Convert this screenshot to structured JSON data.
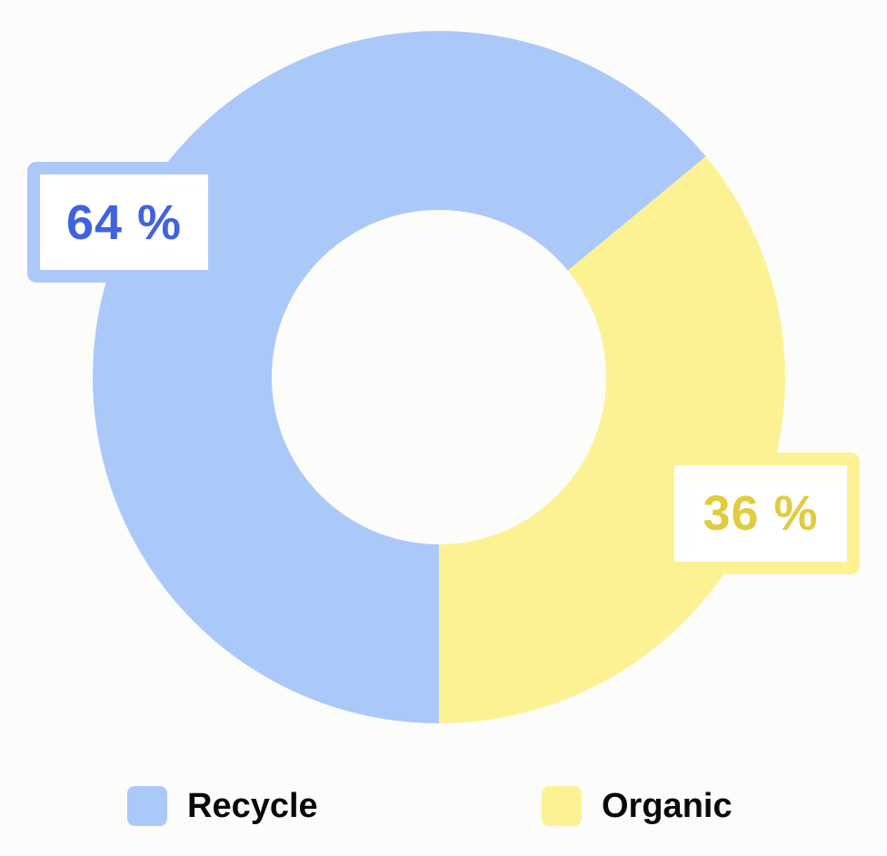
{
  "chart_data": {
    "type": "pie",
    "variant": "donut",
    "slices": [
      {
        "name": "Recycle",
        "value": 64,
        "label": "64 %",
        "color": "#abc9f8",
        "label_color": "#3f63df"
      },
      {
        "name": "Organic",
        "value": 36,
        "label": "36 %",
        "color": "#fcf294",
        "label_color": "#e0cc3e"
      }
    ],
    "legend": {
      "placement": "bottom",
      "items": [
        {
          "label": "Recycle",
          "color": "#abc9f8"
        },
        {
          "label": "Organic",
          "color": "#fcf294"
        }
      ]
    },
    "title": ""
  }
}
